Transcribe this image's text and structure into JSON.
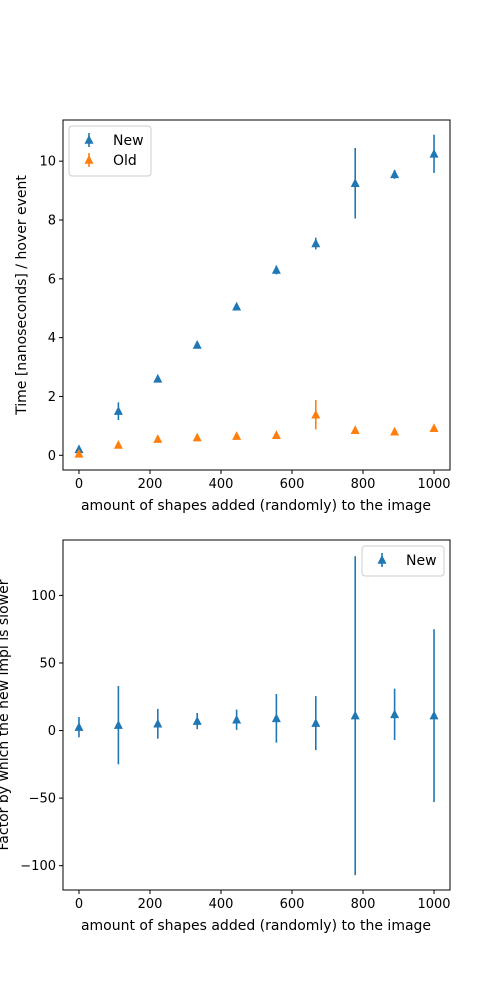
{
  "chart_data": [
    {
      "type": "scatter",
      "xlabel": "amount of shapes added (randomly) to the image",
      "ylabel": "Time [nanoseconds] / hover event",
      "xlim": [
        -45,
        1045
      ],
      "ylim": [
        -0.5,
        11.4
      ],
      "xticks": [
        0,
        200,
        400,
        600,
        800,
        1000
      ],
      "yticks": [
        0,
        2,
        4,
        6,
        8,
        10
      ],
      "legend": "top-left",
      "grid": false,
      "series": [
        {
          "name": "New",
          "color": "#1f77b4",
          "marker": "triangle-up",
          "x": [
            0,
            111,
            222,
            333,
            444,
            556,
            667,
            778,
            889,
            1000
          ],
          "y": [
            0.2,
            1.5,
            2.6,
            3.75,
            5.05,
            6.3,
            7.2,
            9.25,
            9.55,
            10.25
          ],
          "err": [
            0.1,
            0.3,
            0.1,
            0.1,
            0.1,
            0.15,
            0.2,
            1.2,
            0.15,
            0.65
          ]
        },
        {
          "name": "Old",
          "color": "#ff7f0e",
          "marker": "triangle-up",
          "x": [
            0,
            111,
            222,
            333,
            444,
            556,
            667,
            778,
            889,
            1000
          ],
          "y": [
            0.05,
            0.35,
            0.55,
            0.6,
            0.65,
            0.68,
            1.38,
            0.85,
            0.8,
            0.92
          ],
          "err": [
            0.03,
            0.05,
            0.05,
            0.05,
            0.05,
            0.05,
            0.5,
            0.08,
            0.08,
            0.08
          ]
        }
      ]
    },
    {
      "type": "scatter",
      "xlabel": "amount of shapes added (randomly) to the image",
      "ylabel": "Factor by which the new impl is slower",
      "xlim": [
        -45,
        1045
      ],
      "ylim": [
        -118,
        141
      ],
      "xticks": [
        0,
        200,
        400,
        600,
        800,
        1000
      ],
      "yticks": [
        -100,
        -50,
        0,
        50,
        100
      ],
      "legend": "top-right",
      "grid": false,
      "series": [
        {
          "name": "New",
          "color": "#1f77b4",
          "marker": "triangle-up",
          "x": [
            0,
            111,
            222,
            333,
            444,
            556,
            667,
            778,
            889,
            1000
          ],
          "y": [
            2.5,
            4,
            5,
            7,
            8,
            9,
            5.5,
            11,
            12,
            11
          ],
          "err": [
            7.5,
            29,
            11,
            6,
            7.5,
            18,
            20,
            118,
            19,
            64
          ]
        }
      ]
    }
  ]
}
